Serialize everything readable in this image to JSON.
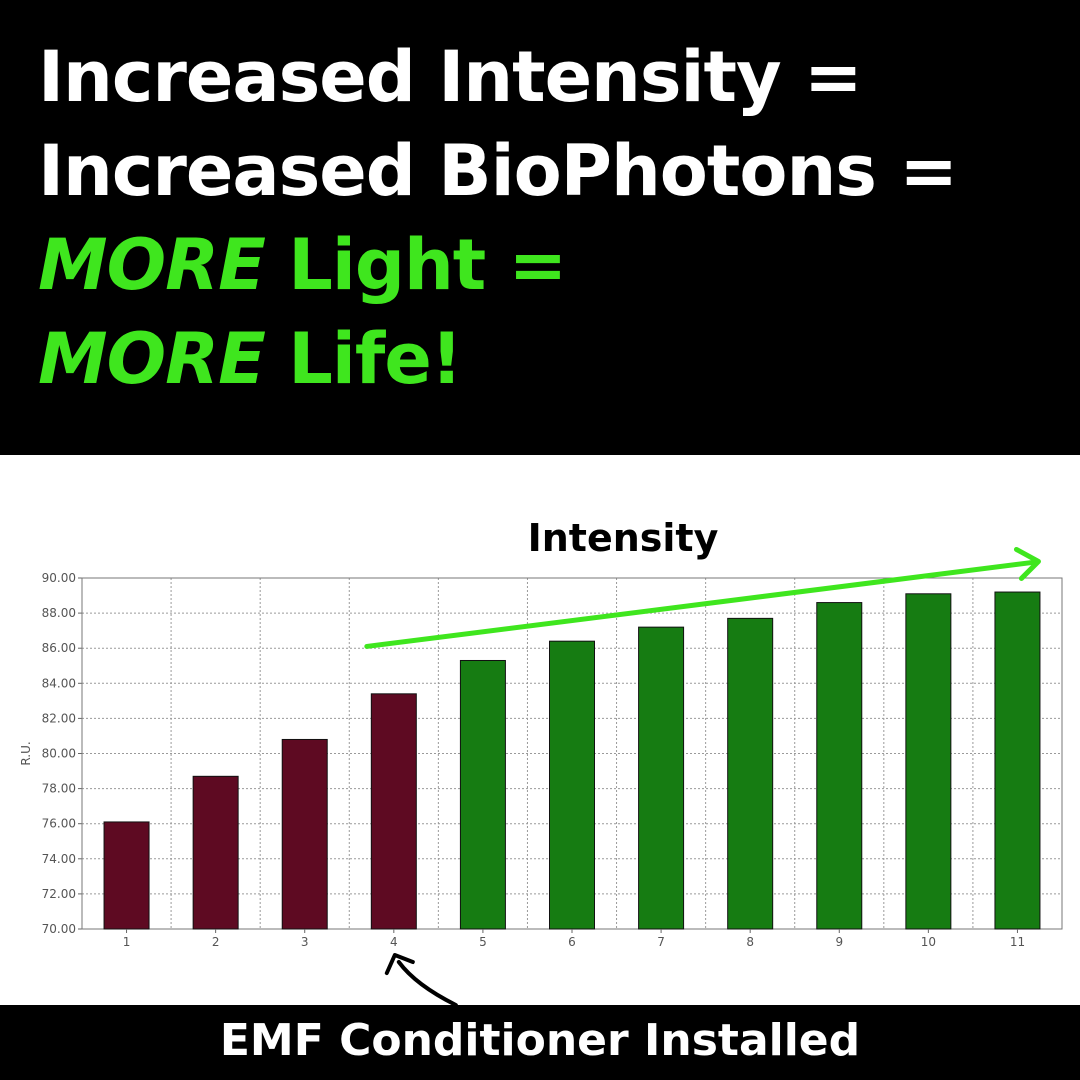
{
  "headline": {
    "line1": "Increased Intensity =",
    "line2": "Increased BioPhotons =",
    "line3_em": "MORE",
    "line3_rest": " Light =",
    "line4_em": "MORE",
    "line4_rest": " Life!"
  },
  "footer": {
    "label": "EMF Conditioner Installed"
  },
  "colors": {
    "before": "#5e0a22",
    "after": "#167c12",
    "highlight": "#3fe61e",
    "gridline": "#9a9a9a"
  },
  "chart_data": {
    "type": "bar",
    "categories": [
      "1",
      "2",
      "3",
      "4",
      "5",
      "6",
      "7",
      "8",
      "9",
      "10",
      "11"
    ],
    "values": [
      76.1,
      78.7,
      80.8,
      83.4,
      85.3,
      86.4,
      87.2,
      87.7,
      88.6,
      89.1,
      89.2
    ],
    "bar_colors": [
      "before",
      "before",
      "before",
      "before",
      "after",
      "after",
      "after",
      "after",
      "after",
      "after",
      "after"
    ],
    "title": "",
    "xlabel": "",
    "ylabel": "R.U.",
    "ylim": [
      70,
      90
    ],
    "yticks": [
      "70.00",
      "72.00",
      "74.00",
      "76.00",
      "78.00",
      "80.00",
      "82.00",
      "84.00",
      "86.00",
      "88.00",
      "90.00"
    ],
    "grid": true,
    "annotations": {
      "trend_label": "Intensity",
      "trend_start_category": "4",
      "trend_start_value": 86.1,
      "trend_end_category": "11",
      "trend_end_value": 91.0,
      "marker_category": "4",
      "marker_text": "EMF Conditioner Installed"
    }
  }
}
